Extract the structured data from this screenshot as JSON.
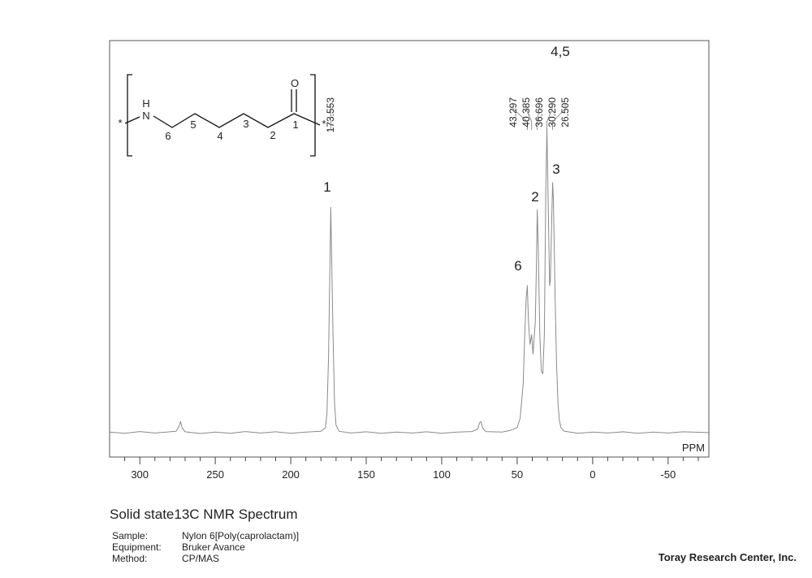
{
  "chart_data": {
    "type": "line",
    "title": "Solid state13C NMR Spectrum",
    "x_label": "PPM",
    "color": "#8a8a8a",
    "xlim": [
      320,
      -77
    ],
    "ylim": [
      -10,
      160
    ],
    "xticks": [
      300,
      250,
      200,
      150,
      100,
      50,
      0,
      -50
    ],
    "xminorticks": [
      310,
      290,
      280,
      270,
      260,
      240,
      230,
      220,
      210,
      190,
      180,
      170,
      160,
      140,
      130,
      120,
      110,
      90,
      80,
      70,
      60,
      40,
      30,
      20,
      10,
      -10,
      -20,
      -30,
      -40,
      -60,
      -70
    ],
    "x": [
      320,
      310,
      300,
      290,
      280,
      276,
      274,
      273,
      272,
      270,
      260,
      250,
      240,
      230,
      220,
      210,
      200,
      190,
      180,
      177,
      176,
      175,
      174,
      173.5,
      173,
      172,
      171,
      170,
      168,
      160,
      150,
      140,
      130,
      120,
      110,
      100,
      90,
      80,
      76,
      75,
      74,
      73,
      71,
      60,
      55,
      50,
      48,
      46,
      45,
      44,
      43.3,
      42.5,
      41.5,
      40.4,
      39.5,
      38,
      37.2,
      36.7,
      36,
      35,
      34,
      33,
      32,
      31,
      30.3,
      29.5,
      28.5,
      28,
      27,
      26.5,
      26,
      25,
      24,
      23,
      22,
      21,
      19,
      15,
      10,
      0,
      -10,
      -20,
      -30,
      -40,
      -50,
      -60,
      -77
    ],
    "values": [
      0.2,
      -0.3,
      0.4,
      -0.2,
      0.3,
      0.5,
      2.5,
      4.5,
      2,
      0.3,
      -0.4,
      0.2,
      -0.3,
      0.4,
      -0.2,
      0.3,
      -0.3,
      0.2,
      0.5,
      2,
      8,
      30,
      70,
      92,
      75,
      40,
      12,
      3,
      0.5,
      -0.2,
      0.3,
      -0.3,
      0.2,
      -0.2,
      0.3,
      -0.3,
      0.2,
      0.4,
      1.5,
      4,
      4.5,
      2,
      0.4,
      0.2,
      0.8,
      2,
      6,
      20,
      40,
      55,
      60,
      45,
      36,
      40,
      32,
      45,
      70,
      91,
      75,
      40,
      25,
      24,
      40,
      100,
      124,
      95,
      60,
      62,
      90,
      102,
      95,
      60,
      30,
      12,
      5,
      2,
      0.6,
      0.2,
      -0.3,
      0.2,
      -0.2,
      0.3,
      -0.3,
      0.2,
      -0.2,
      0.3,
      0
    ],
    "peaks": [
      {
        "value": 173.553,
        "label": "173.553"
      },
      {
        "value": 43.297,
        "label": "43.297"
      },
      {
        "value": 40.385,
        "label": "40.385"
      },
      {
        "value": 36.696,
        "label": "36.696"
      },
      {
        "value": 30.29,
        "label": "30.290"
      },
      {
        "value": 26.505,
        "label": "26.505"
      }
    ],
    "annotations": [
      "1",
      "2",
      "3",
      "4,5",
      "6"
    ]
  },
  "structure": {
    "atoms": [
      "N",
      "H",
      "O"
    ],
    "numbers": [
      "6",
      "5",
      "4",
      "3",
      "2",
      "1"
    ],
    "end": "*"
  },
  "info": [
    [
      "Sample:",
      "Nylon 6[Poly(caprolactam)]"
    ],
    [
      "Equipment:",
      "Bruker Avance"
    ],
    [
      "Method:",
      "CP/MAS"
    ]
  ],
  "credit": "Toray Research Center, Inc."
}
